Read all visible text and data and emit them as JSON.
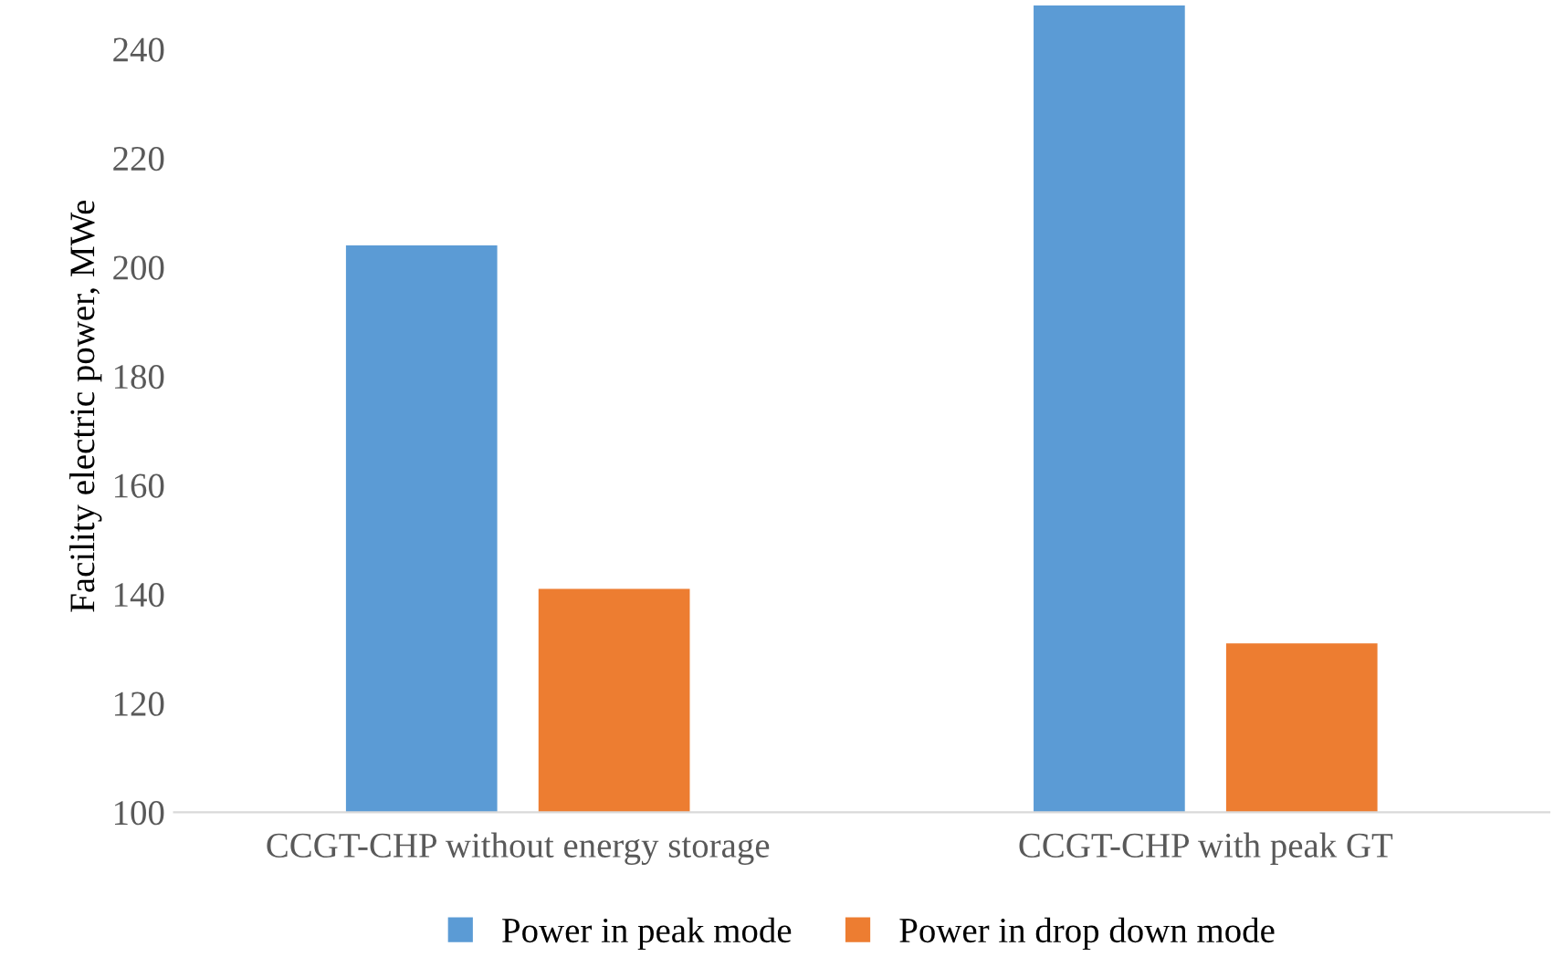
{
  "chart_data": {
    "type": "bar",
    "ylabel": "Facility electric power, MWe",
    "categories": [
      "CCGT-CHP without energy storage",
      "CCGT-CHP with peak GT"
    ],
    "series": [
      {
        "name": "Power in peak mode",
        "color": "#5b9bd5",
        "values": [
          204,
          248
        ]
      },
      {
        "name": "Power in drop down mode",
        "color": "#ed7d31",
        "values": [
          141,
          131
        ]
      }
    ],
    "ylim": [
      100,
      249
    ],
    "yticks": [
      100,
      120,
      140,
      160,
      180,
      200,
      220,
      240
    ],
    "grid": false,
    "legend": "bottom"
  }
}
